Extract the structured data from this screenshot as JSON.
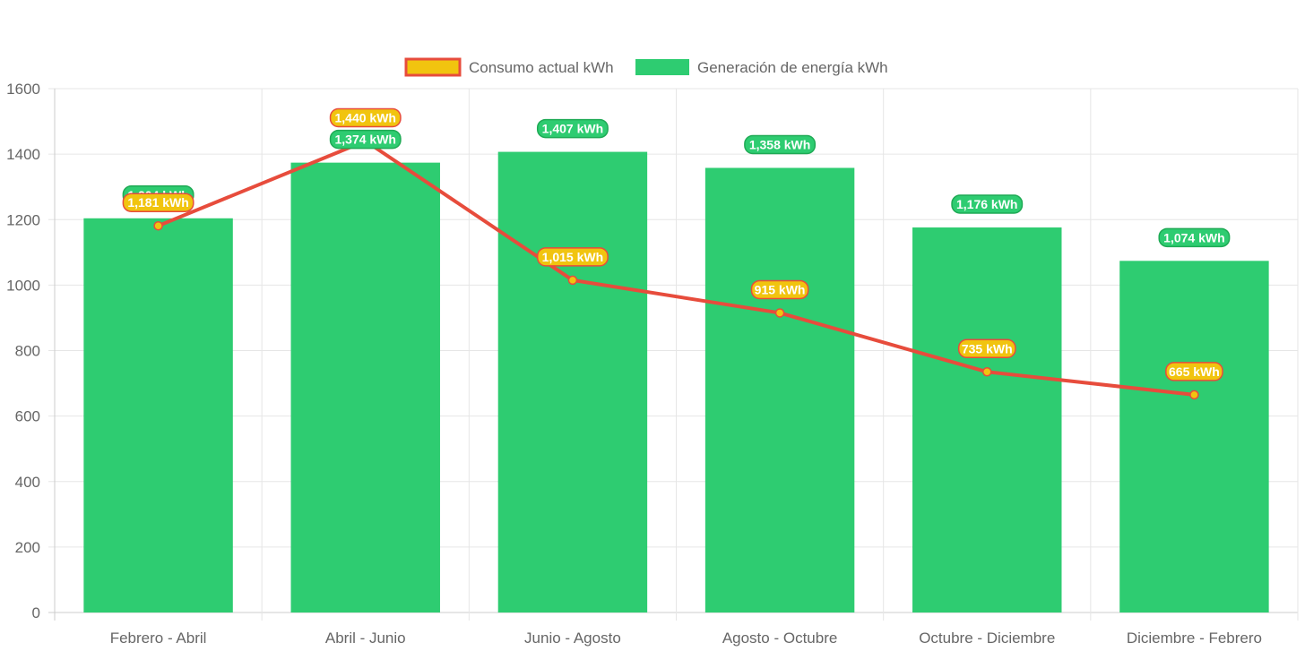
{
  "chart_data": {
    "type": "bar",
    "categories": [
      "Febrero - Abril",
      "Abril - Junio",
      "Junio - Agosto",
      "Agosto - Octubre",
      "Octubre - Diciembre",
      "Diciembre - Febrero"
    ],
    "series": [
      {
        "name": "Generación de energía kWh",
        "type": "bar",
        "values": [
          1204,
          1374,
          1407,
          1358,
          1176,
          1074
        ],
        "labels": [
          "1,204 kWh",
          "1,374 kWh",
          "1,407 kWh",
          "1,358 kWh",
          "1,176 kWh",
          "1,074 kWh"
        ],
        "color": "#2ecc71"
      },
      {
        "name": "Consumo actual kWh",
        "type": "line",
        "values": [
          1181,
          1440,
          1015,
          915,
          735,
          665
        ],
        "labels": [
          "1,181 kWh",
          "1,440 kWh",
          "1,015 kWh",
          "915 kWh",
          "735 kWh",
          "665 kWh"
        ],
        "color": "#e74c3c",
        "fill": "#f1c40f"
      }
    ],
    "legend": [
      "Consumo actual kWh",
      "Generación de energía kWh"
    ],
    "legend_position": "top",
    "ylim": [
      0,
      1600
    ],
    "yticks": [
      "0",
      "200",
      "400",
      "600",
      "800",
      "1000",
      "1200",
      "1400",
      "1600"
    ],
    "grid": true,
    "title": "",
    "xlabel": "",
    "ylabel": ""
  }
}
